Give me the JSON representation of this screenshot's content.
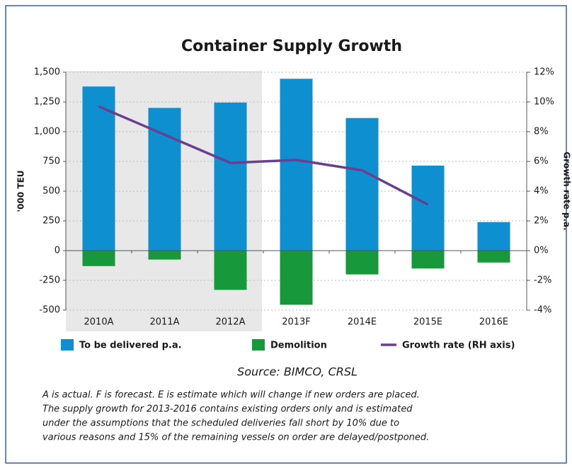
{
  "chart_data": {
    "type": "bar",
    "title": "Container Supply Growth",
    "ylabel": "'000 TEU",
    "y2label": "Growth rate p.a.",
    "categories": [
      "2010A",
      "2011A",
      "2012A",
      "2013F",
      "2014E",
      "2015E",
      "2016E"
    ],
    "series": [
      {
        "name": "To be delivered p.a.",
        "type": "bar",
        "color": "#0e8fd0",
        "values": [
          1380,
          1200,
          1245,
          1445,
          1115,
          715,
          240
        ]
      },
      {
        "name": "Demolition",
        "type": "bar",
        "color": "#17993b",
        "values": [
          -130,
          -75,
          -330,
          -455,
          -200,
          -150,
          -100
        ]
      },
      {
        "name": "Growth rate (RH axis)",
        "type": "line",
        "axis": "y2",
        "color": "#6b3f90",
        "values": [
          9.7,
          7.8,
          5.9,
          6.1,
          5.4,
          3.1,
          null
        ]
      }
    ],
    "ylim": [
      -500,
      1500
    ],
    "yticks": [
      -500,
      -250,
      0,
      250,
      500,
      750,
      {
        "value": 1000,
        "label": "1,000"
      },
      {
        "value": 1250,
        "label": "1,250"
      },
      {
        "value": 1500,
        "label": "1,500"
      }
    ],
    "y2lim": [
      -4,
      12
    ],
    "y2ticks": [
      {
        "value": -4,
        "label": "-4%"
      },
      {
        "value": -2,
        "label": "-2%"
      },
      {
        "value": 0,
        "label": "0%"
      },
      {
        "value": 2,
        "label": "2%"
      },
      {
        "value": 4,
        "label": "4%"
      },
      {
        "value": 6,
        "label": "6%"
      },
      {
        "value": 8,
        "label": "8%"
      },
      {
        "value": 10,
        "label": "10%"
      },
      {
        "value": 12,
        "label": "12%"
      }
    ],
    "grid": true,
    "source": "Source: BIMCO, CRSL",
    "footnote": [
      "A is actual. F is forecast. E is estimate which will change if new orders are placed.",
      "The supply growth for 2013-2016 contains existing orders only and is estimated",
      "under the assumptions that the scheduled deliveries fall short by 10% due to",
      "various reasons and 15% of the remaining vessels on order are delayed/postponed."
    ]
  }
}
